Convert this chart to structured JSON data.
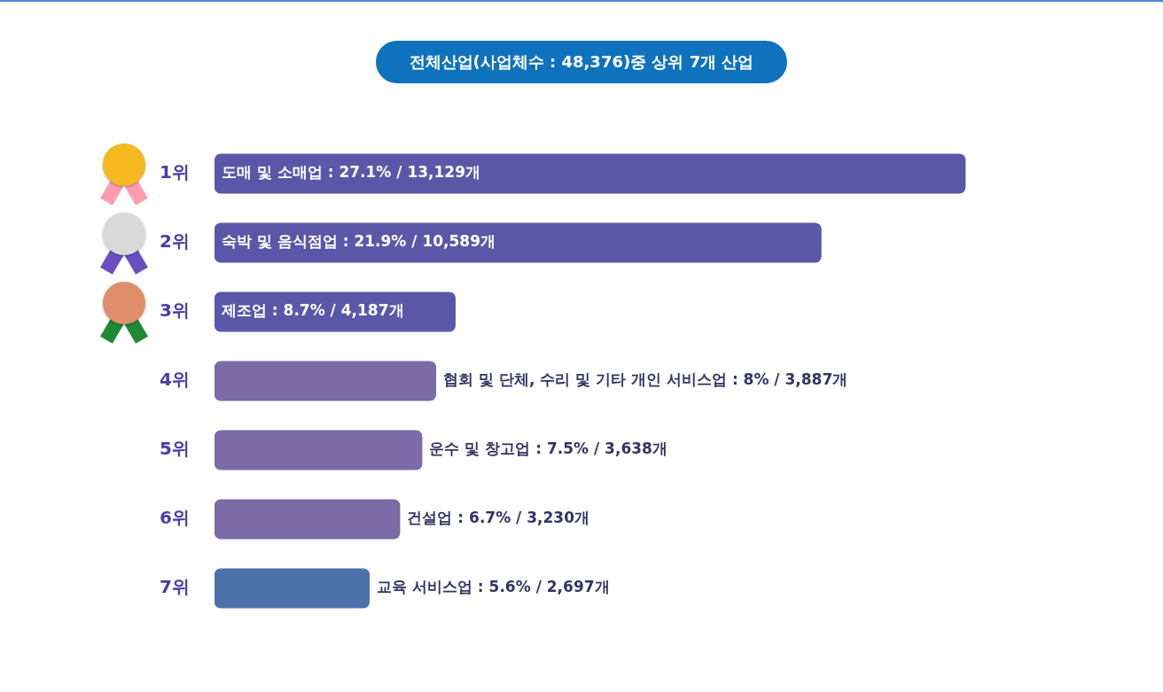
{
  "chart_data": {
    "type": "bar",
    "orientation": "horizontal",
    "title": "전체산업(사업체수 : 48,376)중 상위 7개 산업",
    "categories": [
      "1위",
      "2위",
      "3위",
      "4위",
      "5위",
      "6위",
      "7위"
    ],
    "values": [
      27.1,
      21.9,
      8.7,
      8,
      7.5,
      6.7,
      5.6
    ],
    "colors": [
      "#5b57a8",
      "#5b57a8",
      "#5b57a8",
      "#7b6ba6",
      "#7b6ba6",
      "#7b6ba6",
      "#4d71ab"
    ],
    "value_labels": [
      "도매 및 소매업 : 27.1% / 13,129개",
      "숙박 및 음식점업 : 21.9% / 10,589개",
      "제조업 : 8.7% / 4,187개",
      "협회 및 단체, 수리 및 기타 개인 서비스업 : 8% / 3,887개",
      "운수 및 창고업 : 7.5% / 3,638개",
      "건설업 : 6.7% / 3,230개",
      "교육 서비스업 : 5.6% / 2,697개"
    ]
  }
}
